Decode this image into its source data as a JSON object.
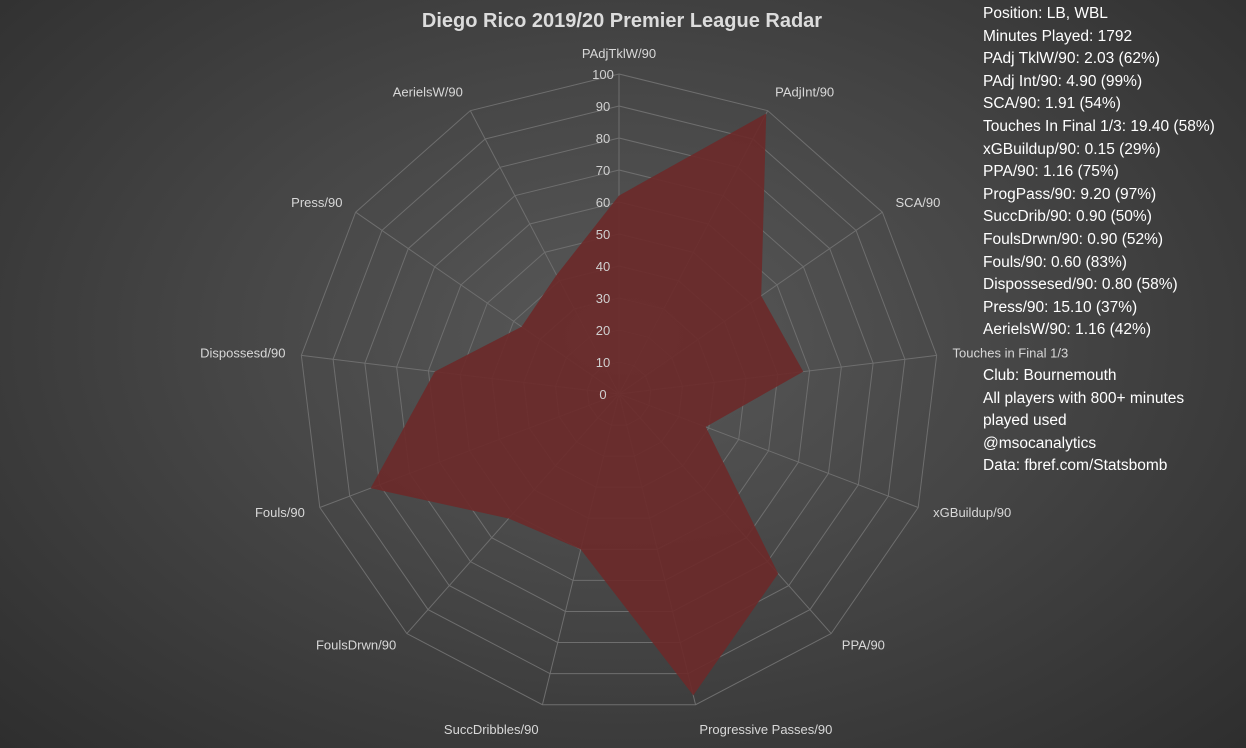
{
  "chart_data": {
    "type": "radar",
    "title": "Diego Rico 2019/20 Premier League Radar",
    "categories": [
      "PAdjTklW/90",
      "PAdjInt/90",
      "SCA/90",
      "Touches in Final 1/3",
      "xGBuildup/90",
      "PPA/90",
      "Progressive Passes/90",
      "SuccDribbles/90",
      "FoulsDrwn/90",
      "Fouls/90",
      "Dispossesd/90",
      "Press/90",
      "AerielsW/90"
    ],
    "series": [
      {
        "values": [
          62,
          99,
          54,
          58,
          29,
          75,
          97,
          50,
          52,
          83,
          58,
          37,
          42
        ]
      }
    ],
    "rlim": [
      0,
      100
    ],
    "ticks": [
      0,
      10,
      20,
      30,
      40,
      50,
      60,
      70,
      80,
      90,
      100
    ],
    "grid": true,
    "fill_color": "#6b2a2a",
    "grid_color": "#6e6e6e"
  },
  "info_lines": [
    "Position: LB, WBL",
    "Minutes Played: 1792",
    "PAdj TklW/90: 2.03 (62%)",
    "PAdj Int/90: 4.90 (99%)",
    "SCA/90: 1.91 (54%)",
    "Touches In Final 1/3: 19.40 (58%)",
    "xGBuildup/90: 0.15 (29%)",
    "PPA/90: 1.16 (75%)",
    "ProgPass/90: 9.20 (97%)",
    "SuccDrib/90: 0.90 (50%)",
    "FoulsDrwn/90: 0.90 (52%)",
    "Fouls/90: 0.60 (83%)",
    "Dispossesed/90: 0.80 (58%)",
    "Press/90: 15.10 (37%)",
    "AerielsW/90: 1.16 (42%)"
  ],
  "footer_lines": [
    "Club: Bournemouth",
    "All players with 800+ minutes",
    "played used",
    "@msocanalytics",
    "Data: fbref.com/Statsbomb"
  ]
}
